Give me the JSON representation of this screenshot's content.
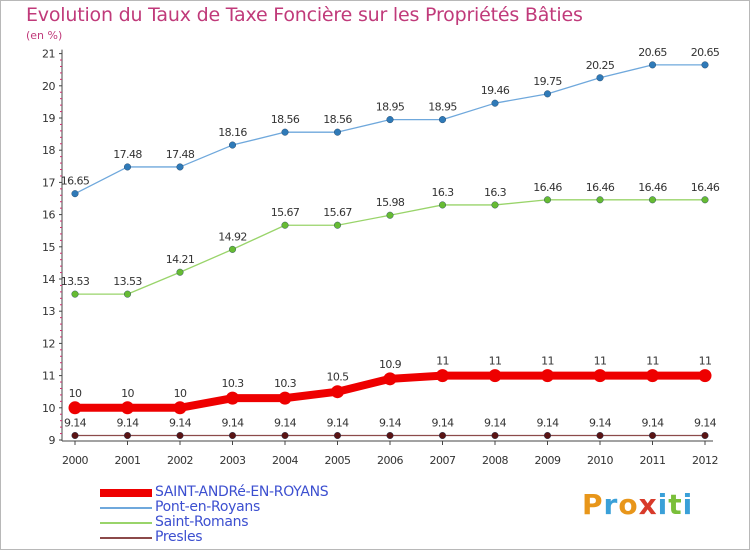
{
  "title": "Evolution du Taux de Taxe Foncière sur les Propriétés Bâties",
  "unit_label": "(en %)",
  "logo": {
    "letters": [
      "P",
      "r",
      "o",
      "x",
      "i",
      "t",
      "i"
    ],
    "colors": [
      "#e8961a",
      "#3aa0d8",
      "#e8961a",
      "#d83a2a",
      "#3aa0d8",
      "#7abf3a",
      "#3aa0d8"
    ]
  },
  "chart_data": {
    "type": "line",
    "title": "Evolution du Taux de Taxe Foncière sur les Propriétés Bâties",
    "ylabel": "(en %)",
    "xlabel": "",
    "ylim": [
      9,
      21
    ],
    "grid": false,
    "legend_position": "bottom-left",
    "x": [
      "2000",
      "2001",
      "2002",
      "2003",
      "2004",
      "2005",
      "2006",
      "2007",
      "2008",
      "2009",
      "2010",
      "2011",
      "2012"
    ],
    "y_ticks": [
      "9",
      "10",
      "11",
      "12",
      "13",
      "14",
      "15",
      "16",
      "17",
      "18",
      "19",
      "20",
      "21"
    ],
    "series": [
      {
        "name": "SAINT-ANDRé-EN-ROYANS",
        "color": "#ee0000",
        "marker": "#ee0000",
        "width": 8,
        "labels": [
          "10",
          "10",
          "10",
          "10.3",
          "10.3",
          "10.5",
          "10.9",
          "11",
          "11",
          "11",
          "11",
          "11",
          "11"
        ],
        "values": [
          10,
          10,
          10,
          10.3,
          10.3,
          10.5,
          10.9,
          11,
          11,
          11,
          11,
          11,
          11
        ]
      },
      {
        "name": "Pont-en-Royans",
        "color": "#6fa8dc",
        "marker": "#2f7ab8",
        "width": 1.3,
        "labels": [
          "16.65",
          "17.48",
          "17.48",
          "18.16",
          "18.56",
          "18.56",
          "18.95",
          "18.95",
          "19.46",
          "19.75",
          "20.25",
          "20.65",
          "20.65"
        ],
        "values": [
          16.65,
          17.48,
          17.48,
          18.16,
          18.56,
          18.56,
          18.95,
          18.95,
          19.46,
          19.75,
          20.25,
          20.65,
          20.65
        ]
      },
      {
        "name": "Saint-Romans",
        "color": "#99d46a",
        "marker": "#66bb33",
        "width": 1.3,
        "labels": [
          "13.53",
          "13.53",
          "14.21",
          "14.92",
          "15.67",
          "15.67",
          "15.98",
          "16.3",
          "16.3",
          "16.46",
          "16.46",
          "16.46",
          "16.46"
        ],
        "values": [
          13.53,
          13.53,
          14.21,
          14.92,
          15.67,
          15.67,
          15.98,
          16.3,
          16.3,
          16.46,
          16.46,
          16.46,
          16.46
        ]
      },
      {
        "name": "Presles",
        "color": "#8c4a4a",
        "marker": "#5a1414",
        "width": 1.3,
        "labels": [
          "9.14",
          "9.14",
          "9.14",
          "9.14",
          "9.14",
          "9.14",
          "9.14",
          "9.14",
          "9.14",
          "9.14",
          "9.14",
          "9.14",
          "9.14"
        ],
        "values": [
          9.14,
          9.14,
          9.14,
          9.14,
          9.14,
          9.14,
          9.14,
          9.14,
          9.14,
          9.14,
          9.14,
          9.14,
          9.14
        ]
      }
    ]
  }
}
